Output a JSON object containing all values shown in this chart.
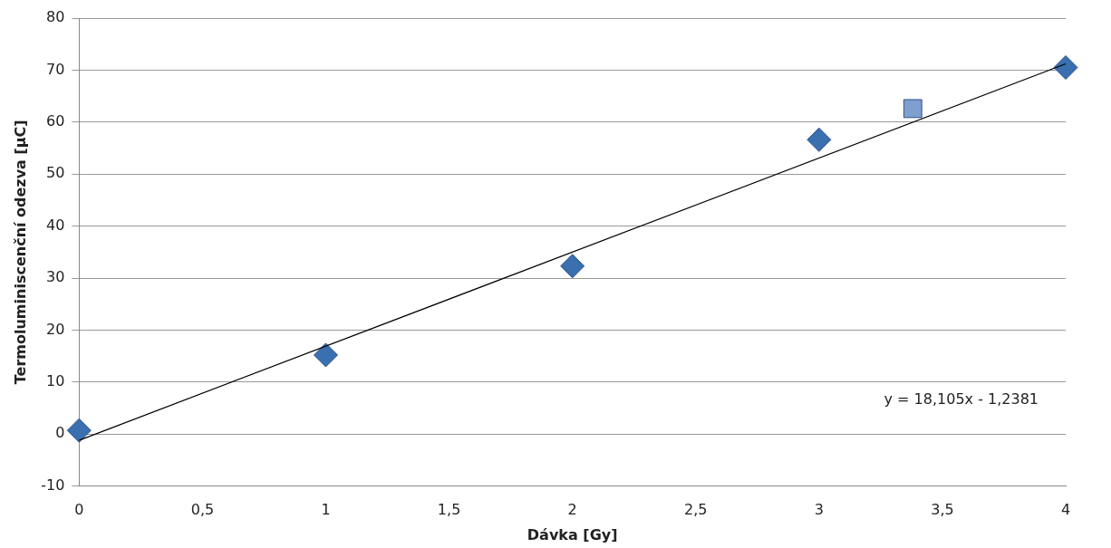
{
  "chart_data": {
    "type": "scatter",
    "xlabel": "Dávka [Gy]",
    "ylabel": "Termoluminiscenční odezva [µC]",
    "xlim": [
      0,
      4
    ],
    "ylim": [
      -10,
      80
    ],
    "xticks": [
      0,
      {
        "value": 0.5,
        "label": "0,5"
      },
      1,
      {
        "value": 1.5,
        "label": "1,5"
      },
      2,
      {
        "value": 2.5,
        "label": "2,5"
      },
      3,
      {
        "value": 3.5,
        "label": "3,5"
      },
      4
    ],
    "yticks": [
      -10,
      0,
      10,
      20,
      30,
      40,
      50,
      60,
      70,
      80
    ],
    "grid": "y",
    "legend": false,
    "series": [
      {
        "type": "line",
        "color": "#000000",
        "x": [
          0,
          4
        ],
        "values": [
          -1.2,
          71.2
        ],
        "marker": "none",
        "line_style": "solid"
      },
      {
        "color": "#3a6fb0",
        "x": [
          0,
          1,
          2,
          3,
          4
        ],
        "values": [
          0.7,
          15.2,
          32.3,
          56.6,
          70.5
        ],
        "marker": "diamond"
      },
      {
        "color": "#7f9fcf",
        "x": [
          3.38
        ],
        "values": [
          62.6
        ],
        "marker": "square"
      }
    ],
    "annotations": [
      "y = 18,105x - 1,2381"
    ]
  }
}
